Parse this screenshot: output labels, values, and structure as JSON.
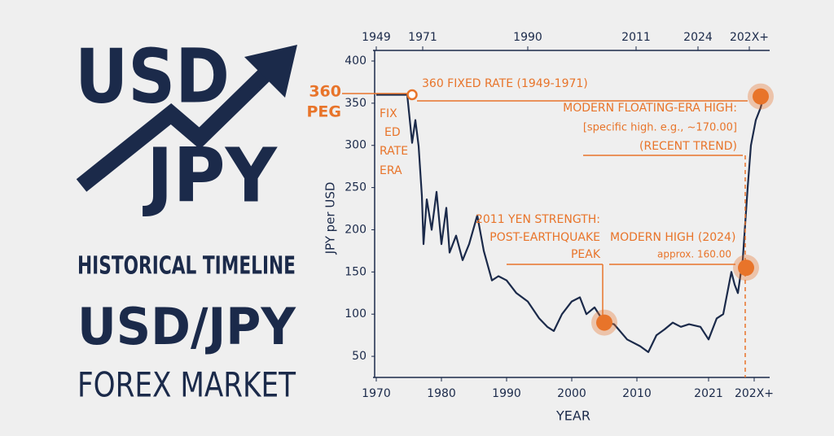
{
  "branding": {
    "logo_top": "USD",
    "logo_bottom": "JPY",
    "subtitle": "HISTORICAL TIMELINE",
    "pair": "USD/JPY",
    "market": "FOREX MARKET"
  },
  "chart_data": {
    "type": "line",
    "x_label": "YEAR",
    "y_label": "JPY per USD",
    "top_axis_labels": [
      "1949",
      "1971",
      "1990",
      "2011",
      "2024",
      "202X+"
    ],
    "x": [
      1970,
      1974.75,
      1975.5,
      1976,
      1976.5,
      1977,
      1977.25,
      1977.75,
      1978.5,
      1979.25,
      1980,
      1980.75,
      1981.25,
      1982.25,
      1983.25,
      1984.25,
      1985.5,
      1986.5,
      1987.75,
      1988.75,
      1990,
      1991.5,
      1993.25,
      1995,
      1996.25,
      1997.25,
      1998.5,
      2000,
      2001.25,
      2002.25,
      2003.5,
      2005,
      2006.5,
      2008.5,
      2010.5,
      2011.75,
      2013,
      2014.25,
      2015.5,
      2016.75,
      2018,
      2019.75,
      2021,
      2022.25,
      2023.25,
      2024,
      2024.5,
      2025,
      2025.5,
      2026.25,
      2027,
      2027.5,
      2028.25,
      2029,
      2029.5
    ],
    "values": [
      360,
      360,
      303,
      330,
      299,
      240,
      183,
      236,
      200,
      245,
      183,
      226,
      173,
      193,
      164,
      183,
      217,
      175,
      140,
      145,
      140,
      125,
      115,
      95,
      85,
      80,
      100,
      115,
      120,
      100,
      108,
      90,
      88,
      70,
      62,
      55,
      75,
      82,
      90,
      85,
      88,
      85,
      70,
      95,
      100,
      130,
      150,
      135,
      125,
      165,
      250,
      300,
      330,
      345,
      360
    ],
    "color": "#1b2a4a",
    "xlim": [
      1970,
      2030
    ],
    "xticks": [
      1970,
      1980,
      1990,
      2000,
      2010,
      2021,
      {
        "value": 2028,
        "label": "202X+"
      }
    ],
    "ylim": [
      25,
      400
    ],
    "yticks": [
      50,
      100,
      150,
      200,
      250,
      300,
      350,
      400
    ],
    "annotation_color": "#e8742a",
    "annotations": [
      {
        "lines": [
          "360",
          "PEG"
        ]
      },
      {
        "lines": [
          "360 FIXED RATE (1949-1971)"
        ],
        "x": 1975.5,
        "y": 360
      },
      {
        "lines": [
          "FIX",
          "ED",
          "RATE",
          "ERA"
        ]
      },
      {
        "lines": [
          "MODERN FLOATING-ERA HIGH:",
          "[specific high. e.g., ~170.00]",
          "(RECENT TREND)"
        ],
        "x": 2029,
        "y": 358
      },
      {
        "lines": [
          "2011 YEN STRENGTH:",
          "POST-EARTHQUAKE",
          "PEAK"
        ],
        "x": 2005,
        "y": 90
      },
      {
        "lines": [
          "MODERN HIGH (2024)",
          "approx. 160.00"
        ],
        "x": 2026.75,
        "y": 155
      }
    ]
  }
}
